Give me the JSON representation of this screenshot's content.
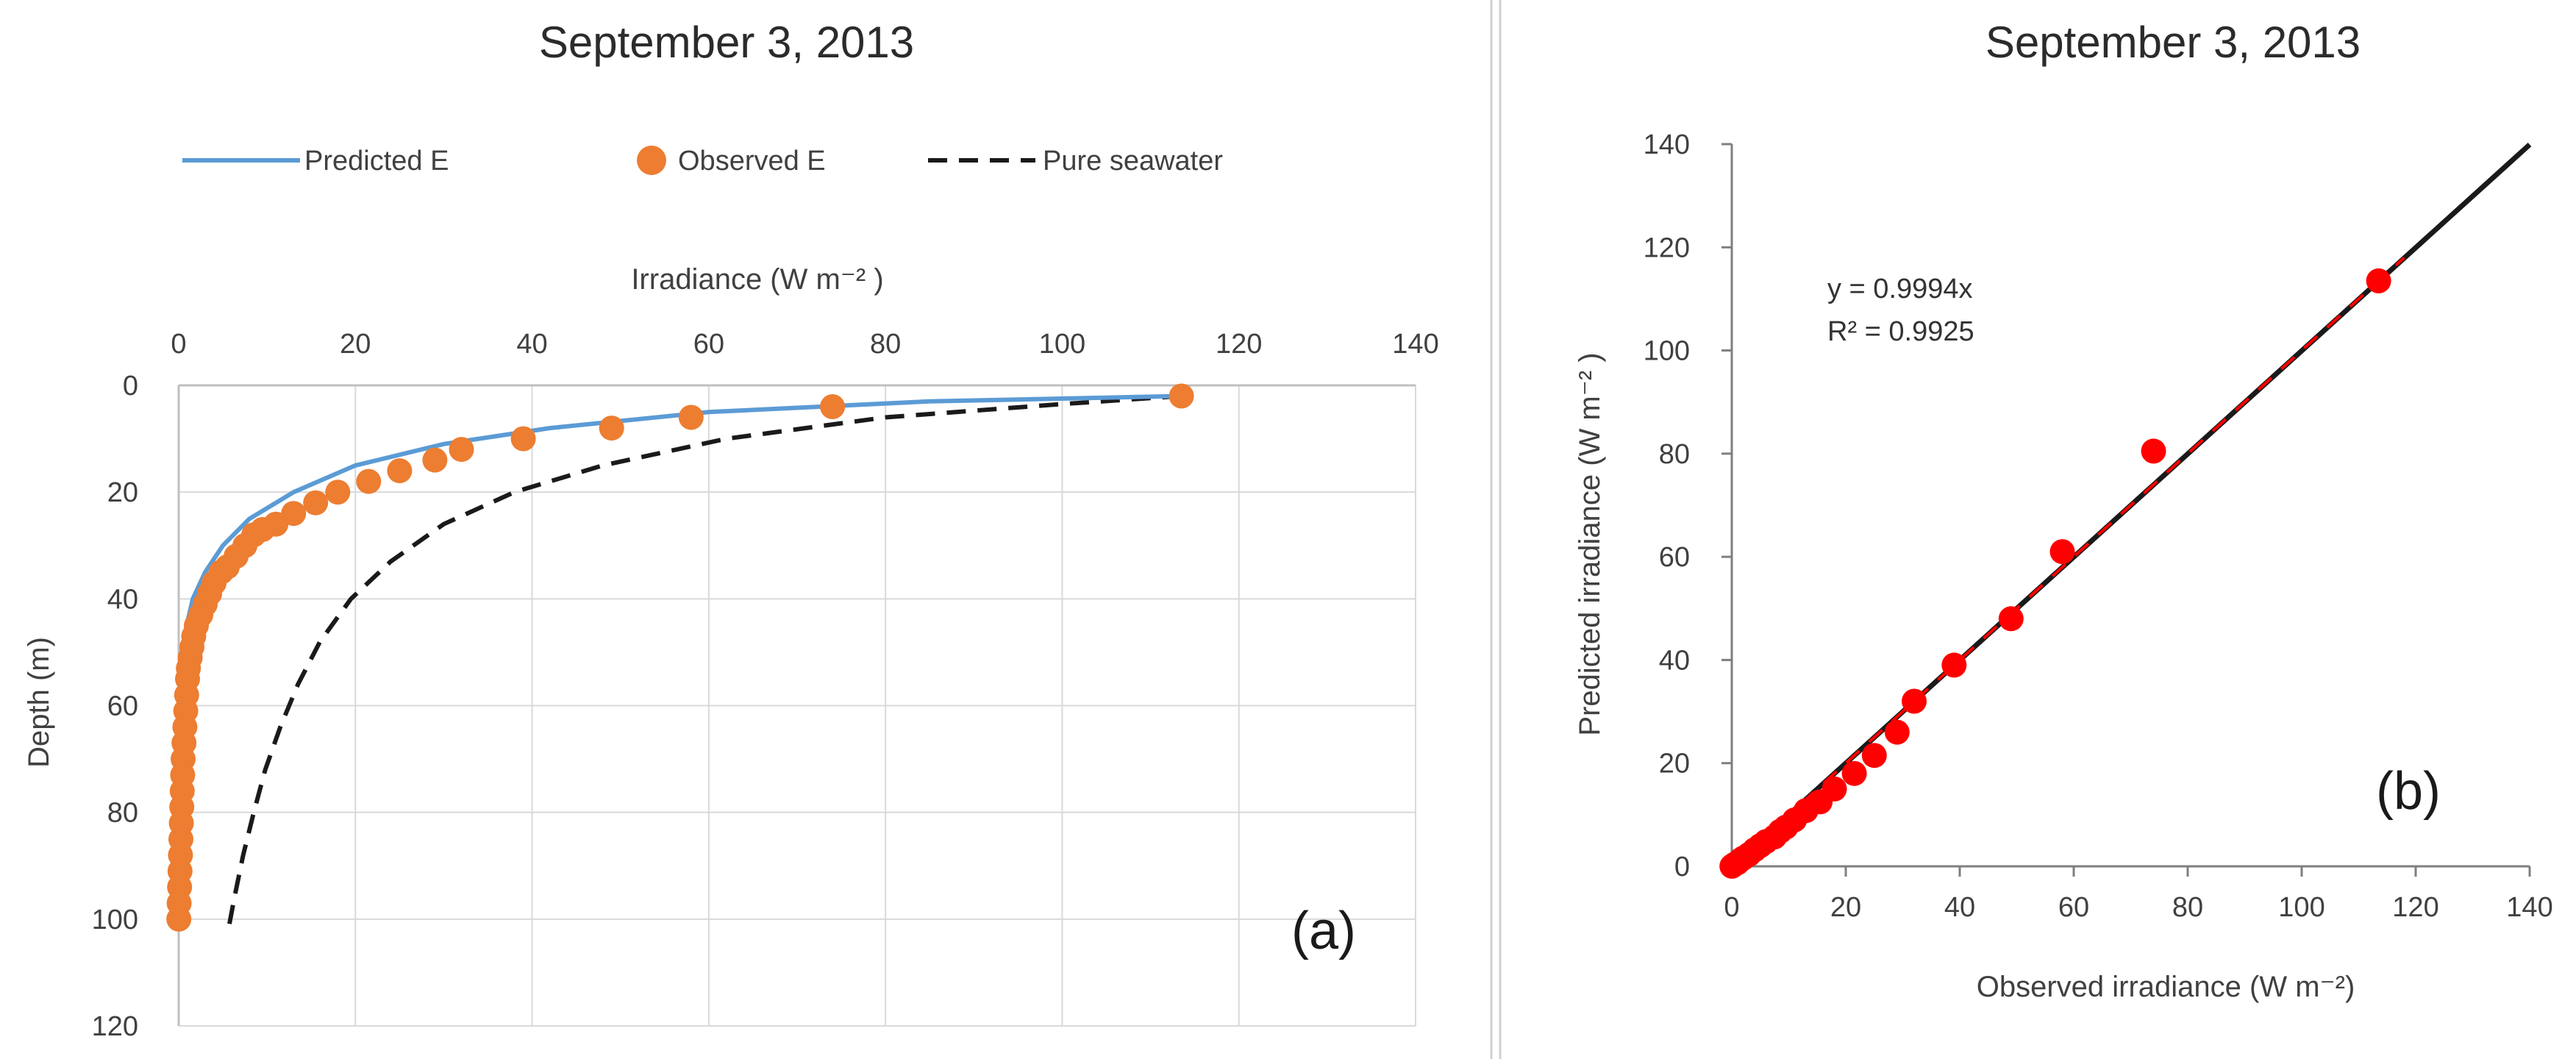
{
  "chart_data": [
    {
      "type": "scatter",
      "title": "September 3, 2013",
      "xlabel": "Irradiance (W m⁻² )",
      "ylabel": "Depth (m)",
      "xlim": [
        0,
        140
      ],
      "ylim": [
        120,
        0
      ],
      "x_axis_position": "top",
      "y_axis_inverted": true,
      "x_ticks": [
        "0",
        "20",
        "40",
        "60",
        "80",
        "100",
        "120",
        "140"
      ],
      "y_ticks": [
        "0",
        "20",
        "40",
        "60",
        "80",
        "100",
        "120"
      ],
      "grid": true,
      "legend_position": "top",
      "panel_label": "(a)",
      "series": [
        {
          "name": "Predicted E",
          "kind": "line",
          "color": "#5b9bd5",
          "points": [
            [
              113.5,
              2
            ],
            [
              85,
              3
            ],
            [
              60,
              5
            ],
            [
              42,
              8
            ],
            [
              30,
              11
            ],
            [
              20,
              15
            ],
            [
              13,
              20
            ],
            [
              8,
              25
            ],
            [
              5,
              30
            ],
            [
              3,
              35
            ],
            [
              1.6,
              40
            ],
            [
              0.9,
              45
            ],
            [
              0.5,
              50
            ],
            [
              0.3,
              55
            ],
            [
              0.15,
              60
            ],
            [
              0.1,
              70
            ],
            [
              0.05,
              80
            ],
            [
              0.02,
              100
            ]
          ]
        },
        {
          "name": "Observed E",
          "kind": "markers",
          "color": "#ed7d31",
          "points": [
            [
              113.5,
              2
            ],
            [
              74,
              4
            ],
            [
              58,
              6
            ],
            [
              49,
              8
            ],
            [
              39,
              10
            ],
            [
              32,
              12
            ],
            [
              29,
              14
            ],
            [
              25,
              16
            ],
            [
              21.5,
              18
            ],
            [
              18,
              20
            ],
            [
              15.5,
              22
            ],
            [
              13,
              24
            ],
            [
              11,
              26
            ],
            [
              9.5,
              27
            ],
            [
              8.5,
              28
            ],
            [
              7.5,
              30
            ],
            [
              6.5,
              32
            ],
            [
              5.5,
              34
            ],
            [
              4.8,
              35
            ],
            [
              4,
              37
            ],
            [
              3.5,
              39
            ],
            [
              3,
              41
            ],
            [
              2.5,
              43
            ],
            [
              2,
              45
            ],
            [
              1.7,
              47
            ],
            [
              1.5,
              49
            ],
            [
              1.3,
              51
            ],
            [
              1.1,
              53
            ],
            [
              1,
              55
            ],
            [
              0.9,
              58
            ],
            [
              0.8,
              61
            ],
            [
              0.7,
              64
            ],
            [
              0.6,
              67
            ],
            [
              0.5,
              70
            ],
            [
              0.45,
              73
            ],
            [
              0.4,
              76
            ],
            [
              0.35,
              79
            ],
            [
              0.3,
              82
            ],
            [
              0.25,
              85
            ],
            [
              0.2,
              88
            ],
            [
              0.15,
              91
            ],
            [
              0.1,
              94
            ],
            [
              0.05,
              97
            ],
            [
              0.02,
              100
            ]
          ]
        },
        {
          "name": "Pure seawater",
          "kind": "dashed-line",
          "color": "#1a1a1a",
          "points": [
            [
              113.5,
              2
            ],
            [
              100,
              3.5
            ],
            [
              80,
              6
            ],
            [
              62,
              10
            ],
            [
              48,
              15
            ],
            [
              38,
              20
            ],
            [
              30,
              26
            ],
            [
              24,
              33
            ],
            [
              19.5,
              40
            ],
            [
              16,
              48
            ],
            [
              13.5,
              56
            ],
            [
              11.5,
              64
            ],
            [
              9.8,
              72
            ],
            [
              8.5,
              80
            ],
            [
              7.3,
              88
            ],
            [
              6.3,
              96
            ],
            [
              5.5,
              103
            ]
          ]
        }
      ]
    },
    {
      "type": "scatter",
      "title": "September 3, 2013",
      "xlabel": "Observed irradiance (W m⁻²)",
      "ylabel": "Predicted irradiance (W m⁻² )",
      "xlim": [
        0,
        140
      ],
      "ylim": [
        0,
        140
      ],
      "x_ticks": [
        "0",
        "20",
        "40",
        "60",
        "80",
        "100",
        "120",
        "140"
      ],
      "y_ticks": [
        "0",
        "20",
        "40",
        "60",
        "80",
        "100",
        "120",
        "140"
      ],
      "grid": false,
      "panel_label": "(b)",
      "annotations": [
        "y = 0.9994x",
        "R² = 0.9925"
      ],
      "series": [
        {
          "kind": "markers",
          "color": "#ff0000",
          "points": [
            [
              0.02,
              0.02
            ],
            [
              0.2,
              0.15
            ],
            [
              0.5,
              0.4
            ],
            [
              1,
              0.7
            ],
            [
              1.5,
              1.2
            ],
            [
              2,
              1.6
            ],
            [
              3,
              2.3
            ],
            [
              4,
              3.2
            ],
            [
              5,
              4
            ],
            [
              6,
              4.8
            ],
            [
              7.5,
              5.7
            ],
            [
              8.5,
              6.8
            ],
            [
              9.5,
              7.6
            ],
            [
              11,
              9
            ],
            [
              13,
              10.8
            ],
            [
              15.5,
              12.5
            ],
            [
              18,
              15
            ],
            [
              21.5,
              18
            ],
            [
              25,
              21.5
            ],
            [
              29,
              26
            ],
            [
              32,
              32
            ],
            [
              39,
              39
            ],
            [
              49,
              48
            ],
            [
              58,
              61
            ],
            [
              74,
              80.5
            ],
            [
              113.5,
              113.5
            ]
          ]
        },
        {
          "name": "",
          "kind": "fit-line",
          "color": "#1a1a1a",
          "slope": 0.9994,
          "x_range": [
            0,
            140
          ]
        }
      ]
    }
  ]
}
